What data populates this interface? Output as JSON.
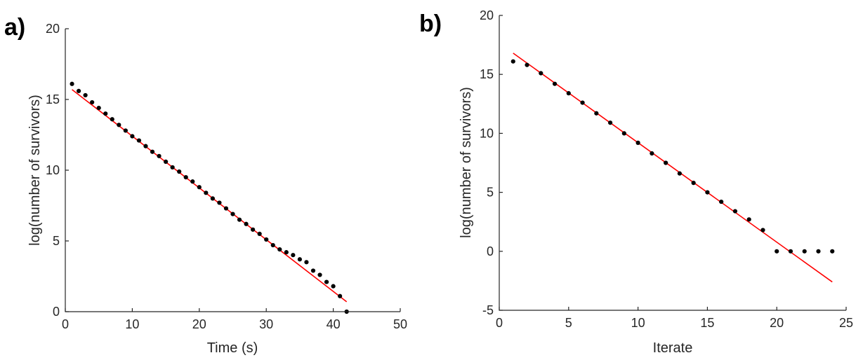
{
  "panels": [
    {
      "label": "a)"
    },
    {
      "label": "b)"
    }
  ],
  "colors": {
    "points": "#000000",
    "fit_line": "#ff0000",
    "axes": "#262626"
  },
  "chart_data": [
    {
      "type": "scatter",
      "xlabel": "Time (s)",
      "ylabel": "log(number of survivors)",
      "xlim": [
        0,
        50
      ],
      "ylim": [
        0,
        20
      ],
      "xticks": [
        0,
        10,
        20,
        30,
        40,
        50
      ],
      "yticks": [
        0,
        5,
        10,
        15,
        20
      ],
      "grid": false,
      "series": [
        {
          "kind": "points",
          "x": [
            1,
            2,
            3,
            4,
            5,
            6,
            7,
            8,
            9,
            10,
            11,
            12,
            13,
            14,
            15,
            16,
            17,
            18,
            19,
            20,
            21,
            22,
            23,
            24,
            25,
            26,
            27,
            28,
            29,
            30,
            31,
            32,
            33,
            34,
            35,
            36,
            37,
            38,
            39,
            40,
            41,
            42
          ],
          "y": [
            16.1,
            15.6,
            15.3,
            14.8,
            14.4,
            14.0,
            13.6,
            13.2,
            12.8,
            12.4,
            12.1,
            11.7,
            11.3,
            11.0,
            10.6,
            10.2,
            9.9,
            9.5,
            9.2,
            8.8,
            8.4,
            8.0,
            7.7,
            7.3,
            6.9,
            6.5,
            6.2,
            5.8,
            5.5,
            5.1,
            4.7,
            4.4,
            4.2,
            4.0,
            3.7,
            3.5,
            2.9,
            2.6,
            2.1,
            1.8,
            1.1,
            0.0
          ]
        },
        {
          "kind": "fit_line",
          "x": [
            1,
            42
          ],
          "y": [
            15.7,
            0.7
          ]
        }
      ]
    },
    {
      "type": "scatter",
      "xlabel": "Iterate",
      "ylabel": "log(number of survivors)",
      "xlim": [
        0,
        25
      ],
      "ylim": [
        -5,
        20
      ],
      "xticks": [
        0,
        5,
        10,
        15,
        20,
        25
      ],
      "yticks": [
        -5,
        0,
        5,
        10,
        15,
        20
      ],
      "grid": false,
      "series": [
        {
          "kind": "points",
          "x": [
            1,
            2,
            3,
            4,
            5,
            6,
            7,
            8,
            9,
            10,
            11,
            12,
            13,
            14,
            15,
            16,
            17,
            18,
            19,
            20,
            21,
            22,
            23,
            24
          ],
          "y": [
            16.1,
            15.8,
            15.1,
            14.2,
            13.4,
            12.6,
            11.7,
            10.9,
            10.0,
            9.2,
            8.3,
            7.5,
            6.6,
            5.8,
            5.0,
            4.2,
            3.4,
            2.7,
            1.8,
            0.0,
            0.0,
            0.0,
            0.0,
            0.0
          ]
        },
        {
          "kind": "fit_line",
          "x": [
            1,
            24
          ],
          "y": [
            16.8,
            -2.6
          ]
        }
      ]
    }
  ]
}
